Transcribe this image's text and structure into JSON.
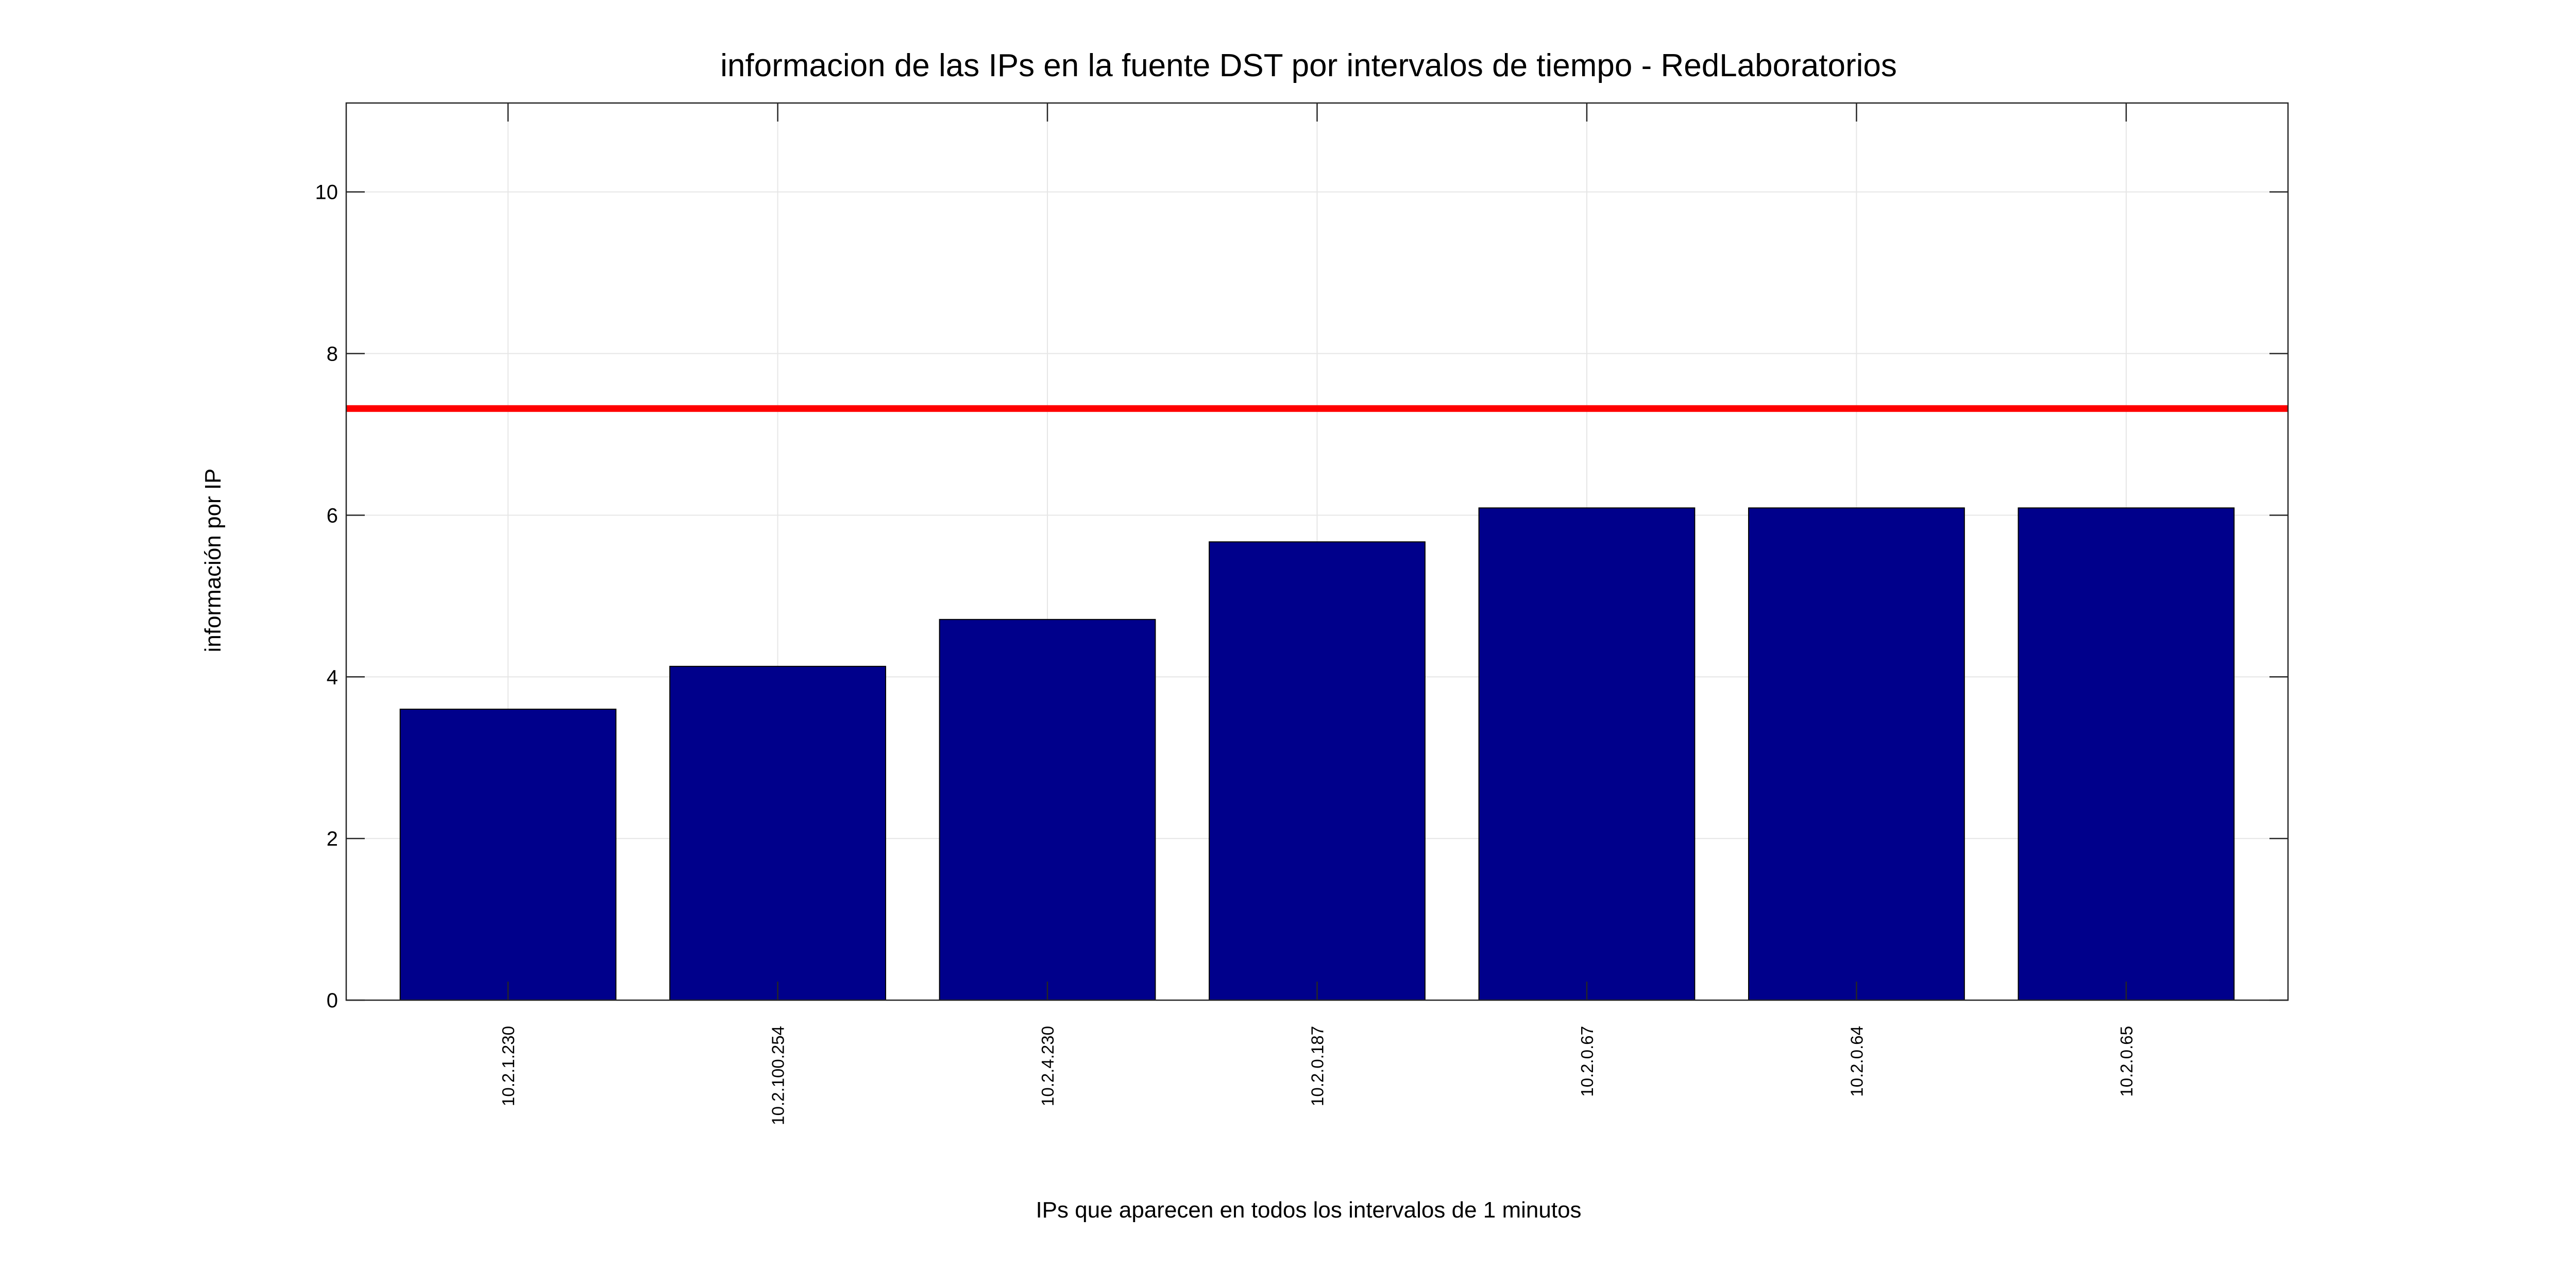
{
  "chart_data": {
    "type": "bar",
    "title": "informacion de las IPs en la fuente DST por intervalos de tiempo - RedLaboratorios",
    "xlabel": "IPs que aparecen en todos los intervalos de 1 minutos",
    "ylabel": "información por IP",
    "categories": [
      "10.2.1.230",
      "10.2.100.254",
      "10.2.4.230",
      "10.2.0.187",
      "10.2.0.67",
      "10.2.0.64",
      "10.2.0.65"
    ],
    "values": [
      3.6,
      4.13,
      4.71,
      5.67,
      6.09,
      6.09,
      6.09
    ],
    "ylim": [
      0,
      11.1
    ],
    "yticks": [
      0,
      2,
      4,
      6,
      8,
      10
    ],
    "threshold": 7.32,
    "grid": true,
    "colors": {
      "bar": "#00008b",
      "bar_edge": "#000000",
      "threshold": "#ff0000",
      "grid": "#e6e6e6",
      "axes": "#262626"
    }
  }
}
